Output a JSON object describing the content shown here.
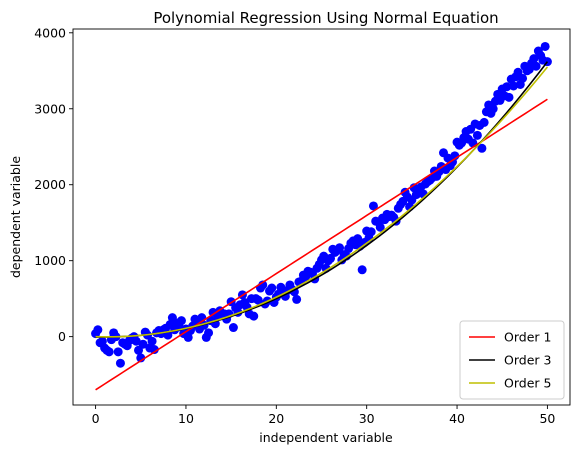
{
  "chart_data": {
    "type": "scatter",
    "title": "Polynomial Regression Using Normal Equation",
    "xlabel": "independent variable",
    "ylabel": "dependent variable",
    "xlim": [
      -2.5,
      52.5
    ],
    "ylim": [
      -900,
      4050
    ],
    "xticks": [
      0,
      10,
      20,
      30,
      40,
      50
    ],
    "yticks": [
      0,
      1000,
      2000,
      3000,
      4000
    ],
    "grid": false,
    "legend_position": "lower-right",
    "scatter": {
      "name": "",
      "color": "#0000ff",
      "points": [
        [
          0.0,
          40
        ],
        [
          0.25,
          90
        ],
        [
          0.5,
          -80
        ],
        [
          0.75,
          -60
        ],
        [
          1.0,
          -150
        ],
        [
          1.25,
          -180
        ],
        [
          1.5,
          -200
        ],
        [
          1.75,
          -40
        ],
        [
          2.0,
          50
        ],
        [
          2.25,
          0
        ],
        [
          2.5,
          -200
        ],
        [
          2.75,
          -350
        ],
        [
          3.0,
          -80
        ],
        [
          3.25,
          -100
        ],
        [
          3.5,
          -120
        ],
        [
          3.75,
          -50
        ],
        [
          4.0,
          -20
        ],
        [
          4.25,
          0
        ],
        [
          4.5,
          -60
        ],
        [
          4.75,
          -180
        ],
        [
          5.0,
          -280
        ],
        [
          5.25,
          -100
        ],
        [
          5.5,
          60
        ],
        [
          5.75,
          20
        ],
        [
          6.0,
          -150
        ],
        [
          6.25,
          -60
        ],
        [
          6.5,
          -170
        ],
        [
          6.75,
          50
        ],
        [
          7.0,
          80
        ],
        [
          7.25,
          40
        ],
        [
          7.5,
          90
        ],
        [
          7.75,
          110
        ],
        [
          8.0,
          20
        ],
        [
          8.25,
          160
        ],
        [
          8.5,
          250
        ],
        [
          8.75,
          90
        ],
        [
          9.0,
          180
        ],
        [
          9.25,
          130
        ],
        [
          9.5,
          210
        ],
        [
          9.75,
          40
        ],
        [
          10.0,
          100
        ],
        [
          10.25,
          -10
        ],
        [
          10.5,
          80
        ],
        [
          10.75,
          140
        ],
        [
          11.0,
          230
        ],
        [
          11.25,
          180
        ],
        [
          11.5,
          100
        ],
        [
          11.75,
          250
        ],
        [
          12.0,
          150
        ],
        [
          12.25,
          -10
        ],
        [
          12.5,
          50
        ],
        [
          12.75,
          210
        ],
        [
          13.0,
          320
        ],
        [
          13.25,
          170
        ],
        [
          13.5,
          270
        ],
        [
          13.75,
          340
        ],
        [
          14.0,
          300
        ],
        [
          14.25,
          300
        ],
        [
          14.5,
          230
        ],
        [
          14.75,
          300
        ],
        [
          15.0,
          460
        ],
        [
          15.25,
          120
        ],
        [
          15.5,
          380
        ],
        [
          15.75,
          320
        ],
        [
          16.0,
          420
        ],
        [
          16.25,
          550
        ],
        [
          16.5,
          450
        ],
        [
          16.75,
          390
        ],
        [
          17.0,
          300
        ],
        [
          17.25,
          500
        ],
        [
          17.5,
          270
        ],
        [
          17.75,
          500
        ],
        [
          18.0,
          480
        ],
        [
          18.25,
          640
        ],
        [
          18.5,
          680
        ],
        [
          18.75,
          430
        ],
        [
          19.0,
          470
        ],
        [
          19.25,
          600
        ],
        [
          19.5,
          640
        ],
        [
          19.75,
          450
        ],
        [
          20.0,
          520
        ],
        [
          20.25,
          560
        ],
        [
          20.5,
          650
        ],
        [
          20.75,
          590
        ],
        [
          21.0,
          530
        ],
        [
          21.25,
          610
        ],
        [
          21.5,
          680
        ],
        [
          21.75,
          620
        ],
        [
          22.0,
          590
        ],
        [
          22.25,
          490
        ],
        [
          22.5,
          720
        ],
        [
          22.75,
          730
        ],
        [
          23.0,
          810
        ],
        [
          23.25,
          790
        ],
        [
          23.5,
          860
        ],
        [
          23.75,
          850
        ],
        [
          24.0,
          830
        ],
        [
          24.25,
          760
        ],
        [
          24.5,
          900
        ],
        [
          24.75,
          950
        ],
        [
          25.0,
          1010
        ],
        [
          25.25,
          1060
        ],
        [
          25.5,
          900
        ],
        [
          25.75,
          1000
        ],
        [
          26.0,
          1030
        ],
        [
          26.25,
          1150
        ],
        [
          26.5,
          1110
        ],
        [
          26.75,
          1140
        ],
        [
          27.0,
          1170
        ],
        [
          27.25,
          1010
        ],
        [
          27.5,
          1080
        ],
        [
          27.75,
          1060
        ],
        [
          28.0,
          1160
        ],
        [
          28.25,
          1230
        ],
        [
          28.5,
          1260
        ],
        [
          28.75,
          1210
        ],
        [
          29.0,
          1290
        ],
        [
          29.25,
          1190
        ],
        [
          29.5,
          880
        ],
        [
          29.75,
          1240
        ],
        [
          30.0,
          1390
        ],
        [
          30.25,
          1300
        ],
        [
          30.5,
          1380
        ],
        [
          30.75,
          1720
        ],
        [
          31.0,
          1520
        ],
        [
          31.25,
          1510
        ],
        [
          31.5,
          1440
        ],
        [
          31.75,
          1560
        ],
        [
          32.0,
          1540
        ],
        [
          32.25,
          1610
        ],
        [
          32.5,
          1580
        ],
        [
          32.75,
          1600
        ],
        [
          33.0,
          1570
        ],
        [
          33.25,
          1520
        ],
        [
          33.5,
          1690
        ],
        [
          33.75,
          1740
        ],
        [
          34.0,
          1780
        ],
        [
          34.25,
          1900
        ],
        [
          34.5,
          1840
        ],
        [
          34.75,
          1710
        ],
        [
          35.0,
          1800
        ],
        [
          35.25,
          1960
        ],
        [
          35.5,
          1870
        ],
        [
          35.75,
          1900
        ],
        [
          36.0,
          1970
        ],
        [
          36.25,
          1880
        ],
        [
          36.5,
          2010
        ],
        [
          36.75,
          2040
        ],
        [
          37.0,
          2060
        ],
        [
          37.25,
          2090
        ],
        [
          37.5,
          2180
        ],
        [
          37.75,
          2110
        ],
        [
          38.0,
          2170
        ],
        [
          38.25,
          2240
        ],
        [
          38.5,
          2420
        ],
        [
          38.75,
          2200
        ],
        [
          39.0,
          2350
        ],
        [
          39.25,
          2250
        ],
        [
          39.5,
          2300
        ],
        [
          39.75,
          2380
        ],
        [
          40.0,
          2560
        ],
        [
          40.25,
          2520
        ],
        [
          40.5,
          2550
        ],
        [
          40.75,
          2620
        ],
        [
          41.0,
          2700
        ],
        [
          41.25,
          2600
        ],
        [
          41.5,
          2730
        ],
        [
          41.75,
          2550
        ],
        [
          42.0,
          2800
        ],
        [
          42.25,
          2650
        ],
        [
          42.5,
          2780
        ],
        [
          42.75,
          2480
        ],
        [
          43.0,
          2820
        ],
        [
          43.25,
          2960
        ],
        [
          43.5,
          3050
        ],
        [
          43.75,
          2940
        ],
        [
          44.0,
          3000
        ],
        [
          44.25,
          3100
        ],
        [
          44.5,
          3190
        ],
        [
          44.75,
          3110
        ],
        [
          45.0,
          3260
        ],
        [
          45.25,
          3170
        ],
        [
          45.5,
          3290
        ],
        [
          45.75,
          3150
        ],
        [
          46.0,
          3390
        ],
        [
          46.25,
          3300
        ],
        [
          46.5,
          3420
        ],
        [
          46.75,
          3480
        ],
        [
          47.0,
          3320
        ],
        [
          47.25,
          3400
        ],
        [
          47.5,
          3560
        ],
        [
          47.75,
          3500
        ],
        [
          48.0,
          3520
        ],
        [
          48.25,
          3600
        ],
        [
          48.5,
          3660
        ],
        [
          48.75,
          3560
        ],
        [
          49.0,
          3760
        ],
        [
          49.25,
          3700
        ],
        [
          49.5,
          3640
        ],
        [
          49.75,
          3820
        ],
        [
          50.0,
          3620
        ]
      ]
    },
    "series": [
      {
        "name": "Order 1",
        "color": "#ff0000",
        "type": "line",
        "coefficients": [
          -700,
          76.5
        ]
      },
      {
        "name": "Order 3",
        "color": "#000000",
        "type": "line",
        "coefficients": [
          -5,
          -2,
          1.28,
          0.0042
        ]
      },
      {
        "name": "Order 5",
        "color": "#bfbf00",
        "type": "line",
        "coefficients": [
          0,
          -4,
          1.5,
          0.0,
          0.0,
          0.0
        ]
      }
    ]
  }
}
